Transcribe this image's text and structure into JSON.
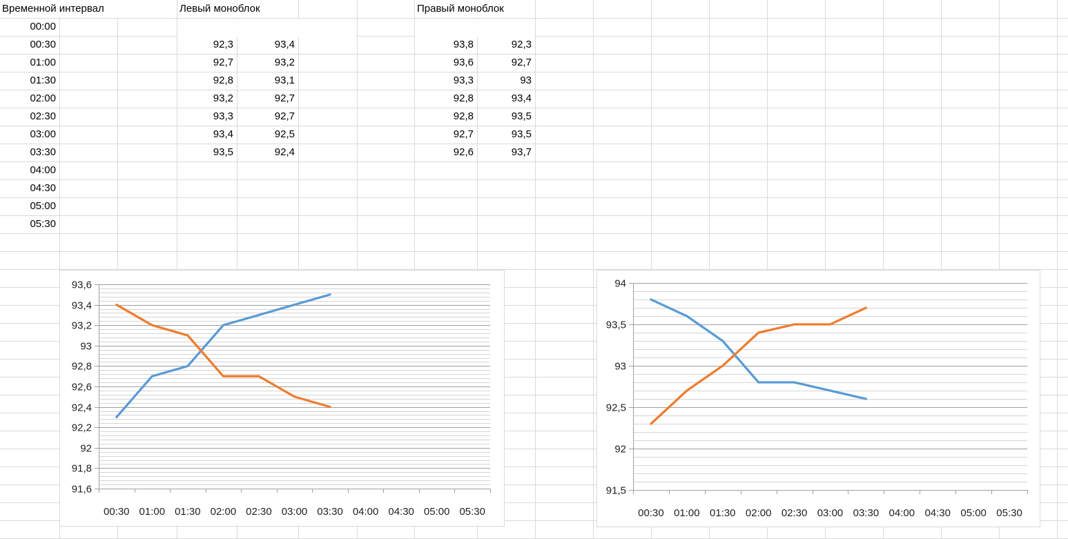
{
  "table": {
    "headers": {
      "time": "Временной интервал",
      "left": "Левый моноблок",
      "right": "Правый моноблок"
    },
    "rows": [
      {
        "time": "00:00",
        "left": [
          "",
          ""
        ],
        "right": [
          "",
          ""
        ]
      },
      {
        "time": "00:30",
        "left": [
          "92,3",
          "93,4"
        ],
        "right": [
          "93,8",
          "92,3"
        ]
      },
      {
        "time": "01:00",
        "left": [
          "92,7",
          "93,2"
        ],
        "right": [
          "93,6",
          "92,7"
        ]
      },
      {
        "time": "01:30",
        "left": [
          "92,8",
          "93,1"
        ],
        "right": [
          "93,3",
          "93"
        ]
      },
      {
        "time": "02:00",
        "left": [
          "93,2",
          "92,7"
        ],
        "right": [
          "92,8",
          "93,4"
        ]
      },
      {
        "time": "02:30",
        "left": [
          "93,3",
          "92,7"
        ],
        "right": [
          "92,8",
          "93,5"
        ]
      },
      {
        "time": "03:00",
        "left": [
          "93,4",
          "92,5"
        ],
        "right": [
          "92,7",
          "93,5"
        ]
      },
      {
        "time": "03:30",
        "left": [
          "93,5",
          "92,4"
        ],
        "right": [
          "92,6",
          "93,7"
        ]
      },
      {
        "time": "04:00",
        "left": [
          "",
          ""
        ],
        "right": [
          "",
          ""
        ]
      },
      {
        "time": "04:30",
        "left": [
          "",
          ""
        ],
        "right": [
          "",
          ""
        ]
      },
      {
        "time": "05:00",
        "left": [
          "",
          ""
        ],
        "right": [
          "",
          ""
        ]
      },
      {
        "time": "05:30",
        "left": [
          "",
          ""
        ],
        "right": [
          "",
          ""
        ]
      }
    ]
  },
  "colors": {
    "series_blue": "#5B9BD5",
    "series_orange": "#ED7D31",
    "sheet_gridline": "#D9D9D9",
    "chart_major_gridline": "#9E9E9E",
    "chart_minor_gridline": "#D4D4D4",
    "chart_border": "#D9D9D9",
    "chart_text": "#1F1F1F"
  },
  "chart_data": [
    {
      "type": "line",
      "title": "",
      "xlabel": "",
      "ylabel": "",
      "categories": [
        "00:30",
        "01:00",
        "01:30",
        "02:00",
        "02:30",
        "03:00",
        "03:30",
        "04:00",
        "04:30",
        "05:00",
        "05:30"
      ],
      "series": [
        {
          "color": "#5B9BD5",
          "values": [
            92.3,
            92.7,
            92.8,
            93.2,
            93.3,
            93.4,
            93.5
          ]
        },
        {
          "color": "#ED7D31",
          "values": [
            93.4,
            93.2,
            93.1,
            92.7,
            92.7,
            92.5,
            92.4
          ]
        }
      ],
      "ylim": [
        91.6,
        93.6
      ],
      "y_major_unit": 0.2,
      "y_minor_unit": 0.04,
      "y_tick_labels": [
        "93,6",
        "93,4",
        "93,2",
        "93",
        "92,8",
        "92,6",
        "92,4",
        "92,2",
        "92",
        "91,8",
        "91,6"
      ],
      "grid": true,
      "legend": "none"
    },
    {
      "type": "line",
      "title": "",
      "xlabel": "",
      "ylabel": "",
      "categories": [
        "00:30",
        "01:00",
        "01:30",
        "02:00",
        "02:30",
        "03:00",
        "03:30",
        "04:00",
        "04:30",
        "05:00",
        "05:30"
      ],
      "series": [
        {
          "color": "#5B9BD5",
          "values": [
            93.8,
            93.6,
            93.3,
            92.8,
            92.8,
            92.7,
            92.6
          ]
        },
        {
          "color": "#ED7D31",
          "values": [
            92.3,
            92.7,
            93.0,
            93.4,
            93.5,
            93.5,
            93.7
          ]
        }
      ],
      "ylim": [
        91.5,
        94
      ],
      "y_major_unit": 0.5,
      "y_minor_unit": 0.1,
      "y_tick_labels": [
        "94",
        "93,5",
        "93",
        "92,5",
        "92",
        "91,5"
      ],
      "grid": true,
      "legend": "none"
    }
  ]
}
